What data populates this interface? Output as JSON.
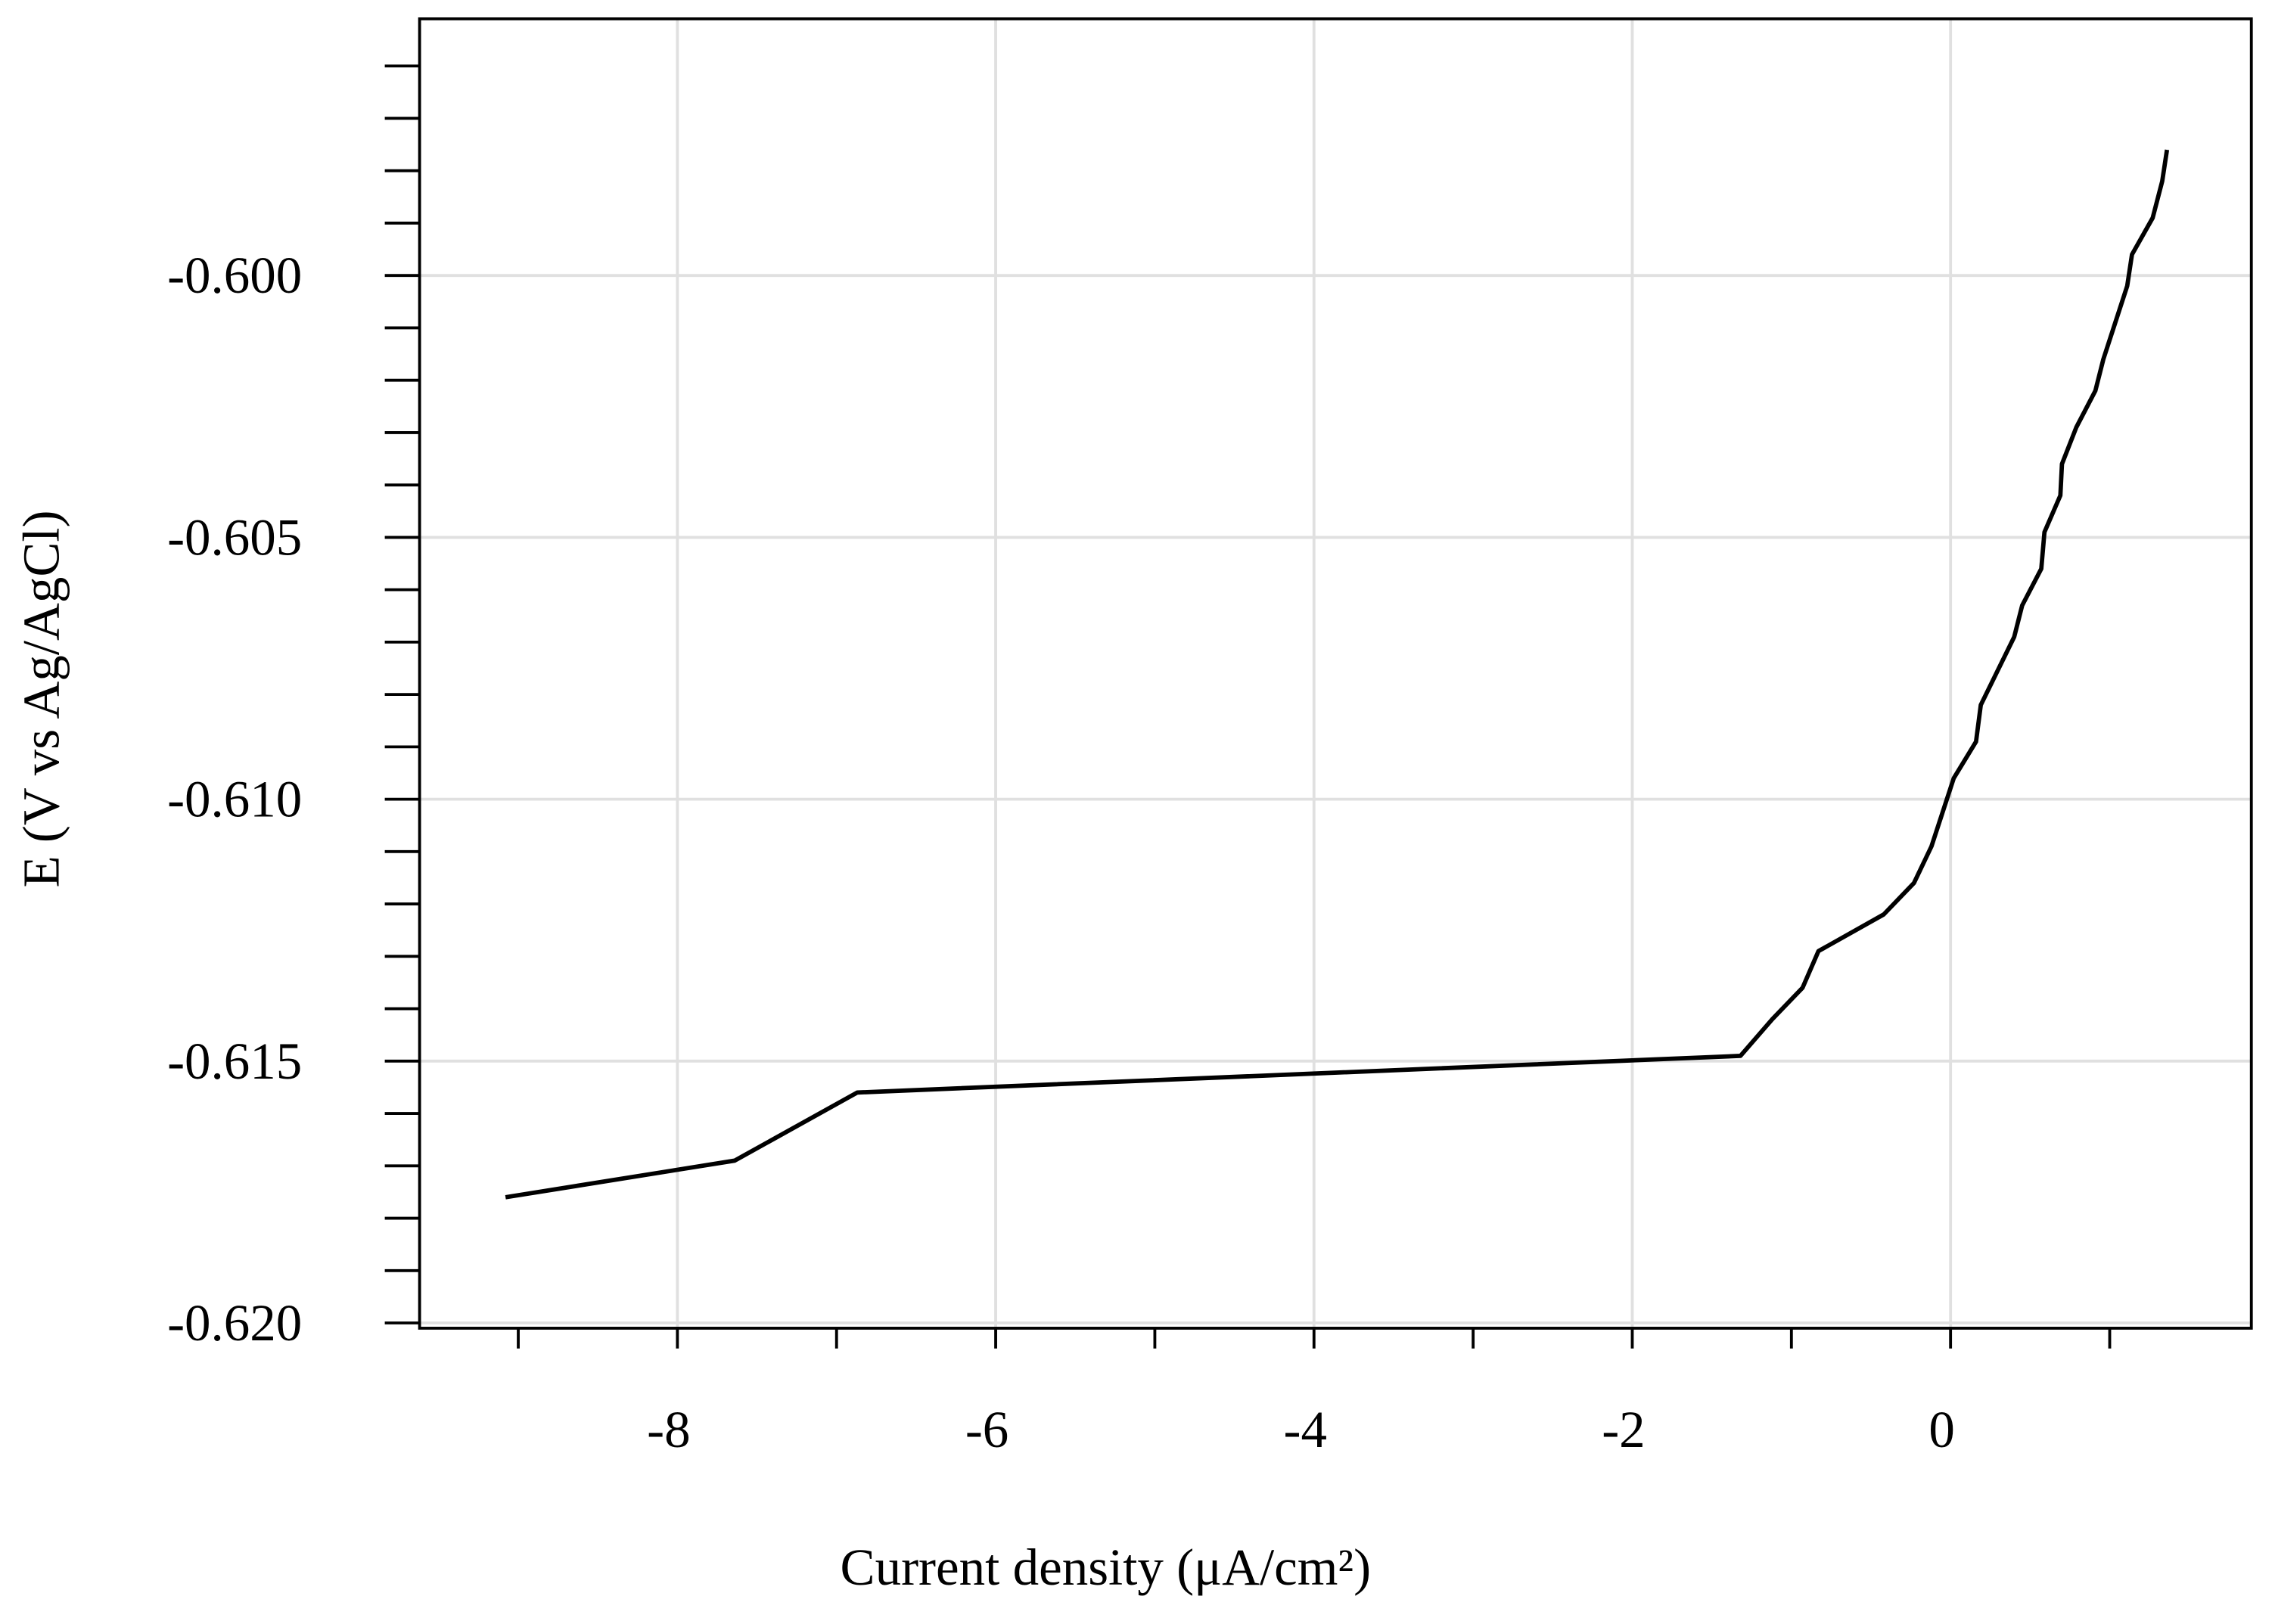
{
  "chart_data": {
    "type": "line",
    "xlabel": "Current density (μA/cm²)",
    "ylabel": "E (V vs Ag/AgCl)",
    "xlim": [
      -9.62,
      1.89
    ],
    "ylim": [
      -0.6201,
      -0.5951
    ],
    "xticks": [
      -8,
      -6,
      -4,
      -2,
      0
    ],
    "yticks": [
      {
        "value": -0.6,
        "label": "-0.600"
      },
      {
        "value": -0.605,
        "label": "-0.605"
      },
      {
        "value": -0.61,
        "label": "-0.610"
      },
      {
        "value": -0.615,
        "label": "-0.615"
      },
      {
        "value": -0.62,
        "label": "-0.620"
      }
    ],
    "xminorticks": [
      -9,
      -7,
      -5,
      -3,
      -1,
      1
    ],
    "yminorticks": [
      -0.596,
      -0.597,
      -0.598,
      -0.599,
      -0.601,
      -0.602,
      -0.603,
      -0.604,
      -0.606,
      -0.607,
      -0.608,
      -0.609,
      -0.611,
      -0.612,
      -0.613,
      -0.614,
      -0.616,
      -0.617,
      -0.618,
      -0.619
    ],
    "grid": true,
    "series": [
      {
        "color": "#000000",
        "x": [
          -9.08,
          -7.64,
          -6.87,
          -1.32,
          -1.12,
          -0.93,
          -0.83,
          -0.42,
          -0.23,
          -0.12,
          0.02,
          0.16,
          0.19,
          0.4,
          0.45,
          0.57,
          0.59,
          0.69,
          0.7,
          0.79,
          0.91,
          0.96,
          1.11,
          1.14,
          1.27,
          1.33,
          1.36
        ],
        "values": [
          -0.6176,
          -0.6169,
          -0.6156,
          -0.6149,
          -0.6142,
          -0.6136,
          -0.6129,
          -0.6122,
          -0.6116,
          -0.6109,
          -0.6096,
          -0.6089,
          -0.6082,
          -0.6069,
          -0.6063,
          -0.6056,
          -0.6049,
          -0.6042,
          -0.6036,
          -0.6029,
          -0.6022,
          -0.6016,
          -0.6002,
          -0.5996,
          -0.5989,
          -0.5982,
          -0.5976
        ]
      }
    ]
  }
}
